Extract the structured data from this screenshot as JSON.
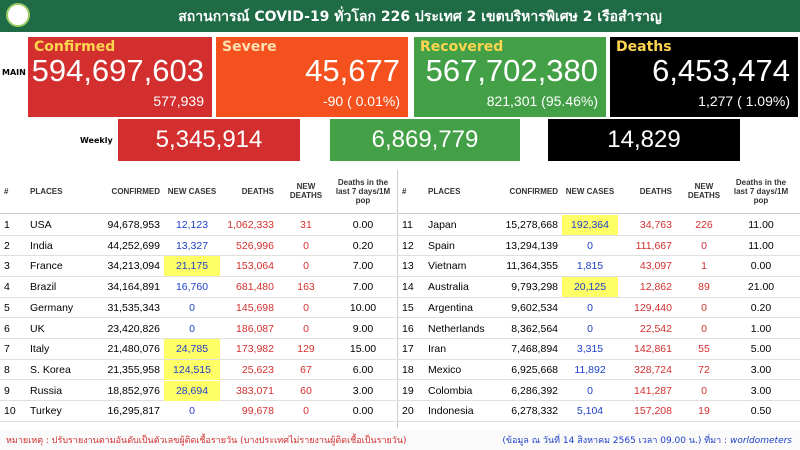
{
  "header": {
    "title": "สถานการณ์ COVID-19 ทั่วโลก 226 ประเทศ 2 เขตบริหารพิเศษ 2 เรือสำราญ"
  },
  "main_label": "MAIN",
  "weekly_label": "Weekly",
  "cards": [
    {
      "label": "Confirmed",
      "value": "594,697,603",
      "sub": "577,939",
      "weekly": "5,345,914"
    },
    {
      "label": "Severe",
      "value": "45,677",
      "sub": "-90 ( 0.01%)"
    },
    {
      "label": "Recovered",
      "value": "567,702,380",
      "sub": "821,301 (95.46%)",
      "weekly": "6,869,779"
    },
    {
      "label": "Deaths",
      "value": "6,453,474",
      "sub": "1,277 ( 1.09%)",
      "weekly": "14,829"
    }
  ],
  "table": {
    "columns": [
      "#",
      "PLACES",
      "CONFIRMED",
      "NEW CASES",
      "DEATHS",
      "NEW DEATHS",
      "Deaths in the last 7 days/1M pop"
    ],
    "rows": [
      [
        "1",
        "USA",
        "94,678,953",
        "12,123",
        "1,062,333",
        "31",
        "0.00"
      ],
      [
        "2",
        "India",
        "44,252,699",
        "13,327",
        "526,996",
        "0",
        "0.20"
      ],
      [
        "3",
        "France",
        "34,213,094",
        "21,175",
        "153,064",
        "0",
        "7.00"
      ],
      [
        "4",
        "Brazil",
        "34,164,891",
        "16,760",
        "681,480",
        "163",
        "7.00"
      ],
      [
        "5",
        "Germany",
        "31,535,343",
        "0",
        "145,698",
        "0",
        "10.00"
      ],
      [
        "6",
        "UK",
        "23,420,826",
        "0",
        "186,087",
        "0",
        "9.00"
      ],
      [
        "7",
        "Italy",
        "21,480,076",
        "24,785",
        "173,982",
        "129",
        "15.00"
      ],
      [
        "8",
        "S. Korea",
        "21,355,958",
        "124,515",
        "25,623",
        "67",
        "6.00"
      ],
      [
        "9",
        "Russia",
        "18,852,976",
        "28,694",
        "383,071",
        "60",
        "3.00"
      ],
      [
        "10",
        "Turkey",
        "16,295,817",
        "0",
        "99,678",
        "0",
        "0.00"
      ],
      [
        "11",
        "Japan",
        "15,278,668",
        "192,364",
        "34,763",
        "226",
        "11.00"
      ],
      [
        "12",
        "Spain",
        "13,294,139",
        "0",
        "111,667",
        "0",
        "11.00"
      ],
      [
        "13",
        "Vietnam",
        "11,364,355",
        "1,815",
        "43,097",
        "1",
        "0.00"
      ],
      [
        "14",
        "Australia",
        "9,793,298",
        "20,125",
        "12,862",
        "89",
        "21.00"
      ],
      [
        "15",
        "Argentina",
        "9,602,534",
        "0",
        "129,440",
        "0",
        "0.20"
      ],
      [
        "16",
        "Netherlands",
        "8,362,564",
        "0",
        "22,542",
        "0",
        "1.00"
      ],
      [
        "17",
        "Iran",
        "7,468,894",
        "3,315",
        "142,861",
        "55",
        "5.00"
      ],
      [
        "18",
        "Mexico",
        "6,925,668",
        "11,892",
        "328,724",
        "72",
        "3.00"
      ],
      [
        "19",
        "Colombia",
        "6,286,392",
        "0",
        "141,287",
        "0",
        "3.00"
      ],
      [
        "20",
        "Indonesia",
        "6,278,332",
        "5,104",
        "157,208",
        "19",
        "0.50"
      ]
    ]
  },
  "footer": {
    "note": "หมายเหตุ : ปรับรายงานตามอันดับเป็นตัวเลขผู้ติดเชื้อรายวัน (บางประเทศไม่รายงานผู้ติดเชื้อเป็นรายวัน)",
    "source_note": "(ข้อมูล ณ วันที่ 14 สิงหาคม 2565 เวลา 09.00 น.) ที่มา :",
    "source": "worldometers"
  }
}
